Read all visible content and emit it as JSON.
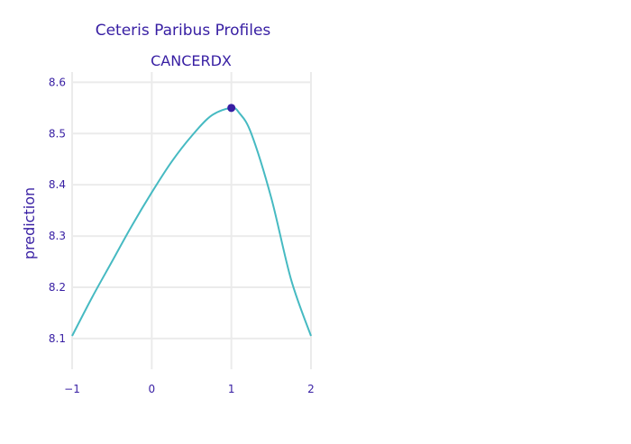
{
  "chart_data": {
    "type": "line",
    "title": "Ceteris Paribus Profiles",
    "subplot_title": "CANCERDX",
    "xlabel": "",
    "ylabel": "prediction",
    "xlim": [
      -1,
      2
    ],
    "ylim": [
      8.04,
      8.62
    ],
    "x_ticks": [
      -1,
      0,
      1,
      2
    ],
    "x_tick_labels": [
      "−1",
      "0",
      "1",
      "2"
    ],
    "y_ticks": [
      8.1,
      8.2,
      8.3,
      8.4,
      8.5,
      8.6
    ],
    "y_tick_labels": [
      "8.1",
      "8.2",
      "8.3",
      "8.4",
      "8.5",
      "8.6"
    ],
    "grid": true,
    "series": [
      {
        "color": "#46bac2",
        "x": [
          -1,
          -0.75,
          -0.5,
          -0.25,
          0,
          0.25,
          0.5,
          0.75,
          1,
          1.1,
          1.25,
          1.5,
          1.75,
          2
        ],
        "y": [
          8.105,
          8.18,
          8.25,
          8.32,
          8.385,
          8.445,
          8.495,
          8.535,
          8.55,
          8.54,
          8.5,
          8.375,
          8.215,
          8.105
        ]
      }
    ],
    "observation": {
      "x": 1,
      "y": 8.55,
      "color": "#371ea3"
    },
    "colors": {
      "title": "#371ea3",
      "axis_text": "#371ea3",
      "grid": "#ebebeb"
    }
  }
}
